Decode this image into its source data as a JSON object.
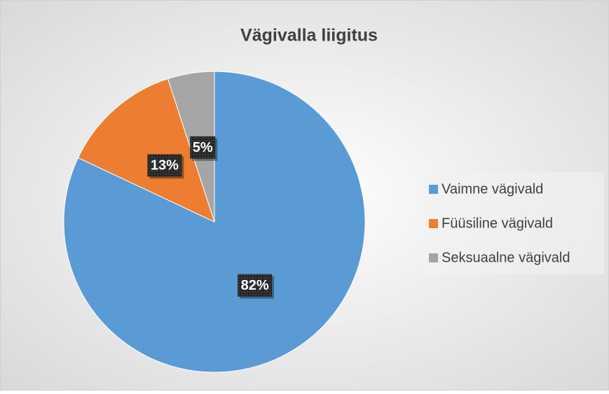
{
  "chart_data": {
    "type": "pie",
    "title": "Vägivalla liigitus",
    "categories": [
      "Vaimne vägivald",
      "Füüsiline vägivald",
      "Seksuaalne vägivald"
    ],
    "values": [
      82,
      13,
      5
    ],
    "value_labels": [
      "82%",
      "13%",
      "5%"
    ],
    "colors": [
      "#5b9bd5",
      "#ed7d31",
      "#a5a5a5"
    ],
    "legend": "right"
  }
}
